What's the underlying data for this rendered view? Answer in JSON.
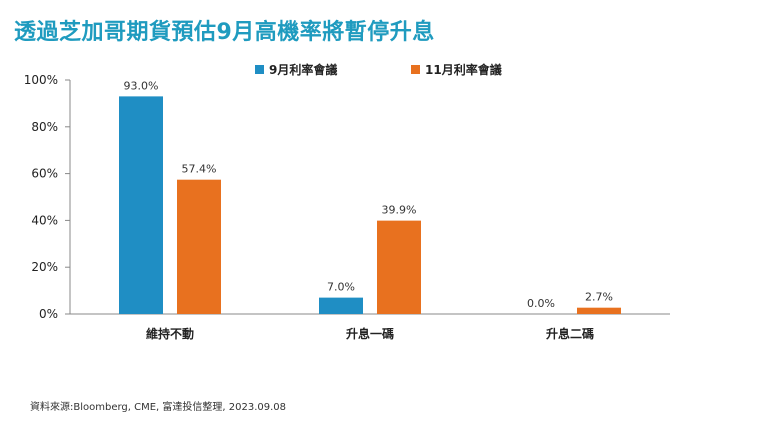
{
  "title": "透過芝加哥期貨預估9月高機率將暫停升息",
  "source": "資料來源:Bloomberg, CME, 富達投信整理, 2023.09.08",
  "colors": {
    "series1": "#1f8ec4",
    "series2": "#e8711f",
    "title": "#1f9bbf"
  },
  "chart_data": {
    "type": "bar",
    "categories": [
      "維持不動",
      "升息一碼",
      "升息二碼"
    ],
    "series": [
      {
        "name": "9月利率會議",
        "values": [
          93.0,
          7.0,
          0.0
        ],
        "labels": [
          "93.0%",
          "7.0%",
          "0.0%"
        ]
      },
      {
        "name": "11月利率會議",
        "values": [
          57.4,
          39.9,
          2.7
        ],
        "labels": [
          "57.4%",
          "39.9%",
          "2.7%"
        ]
      }
    ],
    "yticks": [
      "0%",
      "20%",
      "40%",
      "60%",
      "80%",
      "100%"
    ],
    "ylim": [
      0,
      100
    ],
    "grid": false,
    "legend": "top-center"
  }
}
